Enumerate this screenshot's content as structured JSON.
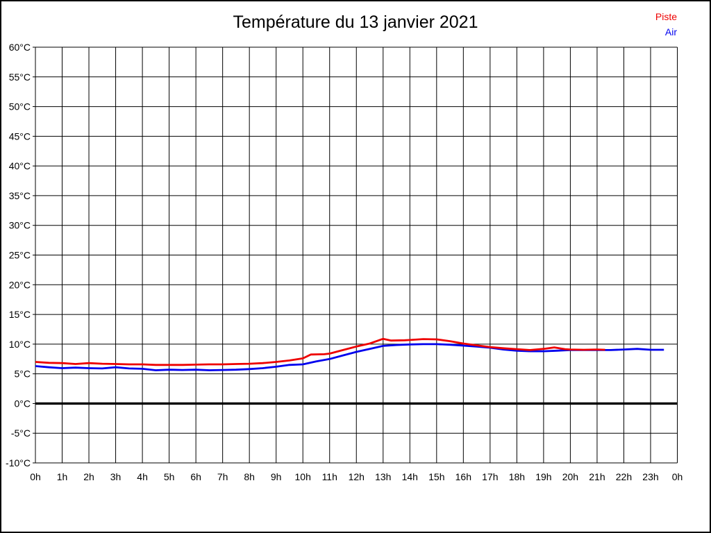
{
  "title": "Température du 13 janvier 2021",
  "legend": {
    "items": [
      {
        "label": "Piste",
        "color": "#ee0000"
      },
      {
        "label": "Air",
        "color": "#0000ee"
      }
    ]
  },
  "colors": {
    "grid": "#000000",
    "zero_line": "#000000",
    "background": "#ffffff",
    "border": "#000000"
  },
  "chart_data": {
    "type": "line",
    "title": "Température du 13 janvier 2021",
    "xlabel": "",
    "ylabel": "",
    "xlim": [
      0,
      24
    ],
    "ylim": [
      -10,
      60
    ],
    "x_tick_step_hours": 1,
    "y_tick_step_degrees": 5,
    "x_tick_labels": [
      "0h",
      "1h",
      "2h",
      "3h",
      "4h",
      "5h",
      "6h",
      "7h",
      "8h",
      "9h",
      "10h",
      "11h",
      "12h",
      "13h",
      "14h",
      "15h",
      "16h",
      "17h",
      "18h",
      "19h",
      "20h",
      "21h",
      "22h",
      "23h",
      "0h"
    ],
    "y_tick_labels": [
      "-10°C",
      "-5°C",
      "0°C",
      "5°C",
      "10°C",
      "15°C",
      "20°C",
      "25°C",
      "30°C",
      "35°C",
      "40°C",
      "45°C",
      "50°C",
      "55°C",
      "60°C"
    ],
    "grid": true,
    "zero_line_value": 0,
    "legend_position": "top-right",
    "series": [
      {
        "name": "Air",
        "color": "#0000ee",
        "unit": "°C",
        "points": [
          [
            0,
            6.3
          ],
          [
            0.5,
            6.1
          ],
          [
            1,
            5.95
          ],
          [
            1.5,
            6.05
          ],
          [
            2,
            5.95
          ],
          [
            2.5,
            5.9
          ],
          [
            3,
            6.1
          ],
          [
            3.5,
            5.9
          ],
          [
            4,
            5.85
          ],
          [
            4.5,
            5.6
          ],
          [
            5,
            5.7
          ],
          [
            5.5,
            5.65
          ],
          [
            6,
            5.7
          ],
          [
            6.5,
            5.6
          ],
          [
            7,
            5.65
          ],
          [
            7.5,
            5.7
          ],
          [
            8,
            5.8
          ],
          [
            8.5,
            5.95
          ],
          [
            9,
            6.2
          ],
          [
            9.5,
            6.5
          ],
          [
            10,
            6.6
          ],
          [
            10.5,
            7.1
          ],
          [
            11,
            7.5
          ],
          [
            11.5,
            8.1
          ],
          [
            12,
            8.7
          ],
          [
            12.5,
            9.2
          ],
          [
            13,
            9.7
          ],
          [
            13.5,
            9.85
          ],
          [
            14,
            9.95
          ],
          [
            14.5,
            10.0
          ],
          [
            15,
            10.0
          ],
          [
            15.5,
            9.9
          ],
          [
            16,
            9.75
          ],
          [
            16.5,
            9.6
          ],
          [
            17,
            9.4
          ],
          [
            17.5,
            9.1
          ],
          [
            18,
            8.9
          ],
          [
            18.5,
            8.8
          ],
          [
            19,
            8.8
          ],
          [
            19.5,
            8.9
          ],
          [
            20,
            9.0
          ],
          [
            20.5,
            9.0
          ],
          [
            21,
            9.0
          ],
          [
            21.5,
            9.0
          ],
          [
            22,
            9.1
          ],
          [
            22.5,
            9.2
          ],
          [
            23,
            9.05
          ],
          [
            23.5,
            9.05
          ]
        ]
      },
      {
        "name": "Piste",
        "color": "#ee0000",
        "unit": "°C",
        "points": [
          [
            0,
            7.0
          ],
          [
            0.5,
            6.85
          ],
          [
            1,
            6.8
          ],
          [
            1.5,
            6.65
          ],
          [
            2,
            6.8
          ],
          [
            2.5,
            6.7
          ],
          [
            3,
            6.65
          ],
          [
            3.5,
            6.6
          ],
          [
            4,
            6.6
          ],
          [
            4.5,
            6.5
          ],
          [
            5,
            6.5
          ],
          [
            5.5,
            6.5
          ],
          [
            6,
            6.55
          ],
          [
            6.5,
            6.6
          ],
          [
            7,
            6.6
          ],
          [
            7.5,
            6.65
          ],
          [
            8,
            6.7
          ],
          [
            8.5,
            6.8
          ],
          [
            9,
            7.0
          ],
          [
            9.5,
            7.25
          ],
          [
            10,
            7.6
          ],
          [
            10.3,
            8.25
          ],
          [
            10.8,
            8.3
          ],
          [
            11,
            8.4
          ],
          [
            11.5,
            9.0
          ],
          [
            12,
            9.6
          ],
          [
            12.5,
            10.1
          ],
          [
            13,
            10.9
          ],
          [
            13.3,
            10.6
          ],
          [
            13.8,
            10.65
          ],
          [
            14,
            10.7
          ],
          [
            14.5,
            10.85
          ],
          [
            15,
            10.8
          ],
          [
            15.5,
            10.5
          ],
          [
            16,
            10.1
          ],
          [
            16.5,
            9.8
          ],
          [
            17,
            9.5
          ],
          [
            17.5,
            9.3
          ],
          [
            18,
            9.15
          ],
          [
            18.5,
            9.0
          ],
          [
            19,
            9.2
          ],
          [
            19.4,
            9.45
          ],
          [
            19.8,
            9.15
          ],
          [
            20,
            9.1
          ],
          [
            20.5,
            9.05
          ],
          [
            21,
            9.1
          ],
          [
            21.3,
            9.05
          ]
        ]
      }
    ]
  }
}
